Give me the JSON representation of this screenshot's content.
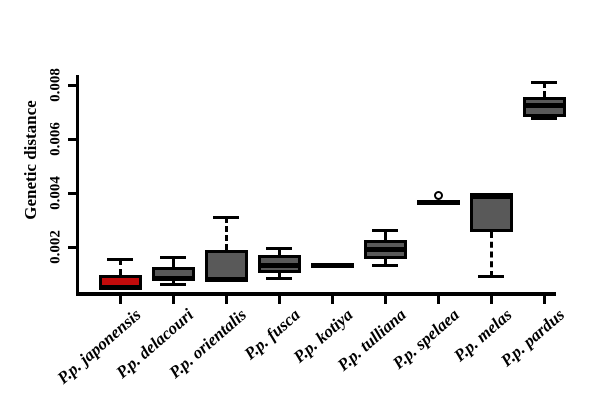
{
  "figure": {
    "title": "",
    "ylabel": "Genetic distance",
    "xlabel": ""
  },
  "chart_data": {
    "type": "boxplot",
    "title": "",
    "ylabel": "Genetic distance",
    "xlabel": "",
    "ylim": [
      0.0003,
      0.0084
    ],
    "yticks": [
      0.002,
      0.004,
      0.006,
      0.008
    ],
    "ytick_labels": [
      "0.002",
      "0.004",
      "0.006",
      "0.008"
    ],
    "grid": false,
    "legend": null,
    "colors": {
      "highlight_box_fill": "#c20b0b",
      "box_fill": "#595959",
      "line": "#000000",
      "background": "#ffffff"
    },
    "categories": [
      "P.p. japonensis",
      "P.p. delacouri",
      "P.p. orientalis",
      "P.p. fusca",
      "P.p. kotiya",
      "P.p. tulliana",
      "P.p. spelaea",
      "P.p. melas",
      "P.p. pardus"
    ],
    "series": [
      {
        "category": "P.p. japonensis",
        "fill": "#c20b0b",
        "q1": 0.00045,
        "median": 0.0005,
        "q3": 0.00095,
        "whisker_low": null,
        "whisker_high": 0.00155,
        "outliers": []
      },
      {
        "category": "P.p. delacouri",
        "fill": "#595959",
        "q1": 0.0008,
        "median": 0.00085,
        "q3": 0.00125,
        "whisker_low": 0.0006,
        "whisker_high": 0.0016,
        "outliers": []
      },
      {
        "category": "P.p. orientalis",
        "fill": "#595959",
        "q1": 0.0007,
        "median": 0.00078,
        "q3": 0.0019,
        "whisker_low": null,
        "whisker_high": 0.0031,
        "outliers": []
      },
      {
        "category": "P.p. fusca",
        "fill": "#595959",
        "q1": 0.00105,
        "median": 0.0013,
        "q3": 0.0017,
        "whisker_low": 0.00085,
        "whisker_high": 0.00195,
        "outliers": []
      },
      {
        "category": "P.p. kotiya",
        "fill": "#595959",
        "q1": 0.00132,
        "median": 0.00132,
        "q3": 0.00132,
        "whisker_low": null,
        "whisker_high": null,
        "outliers": []
      },
      {
        "category": "P.p. tulliana",
        "fill": "#595959",
        "q1": 0.00155,
        "median": 0.0019,
        "q3": 0.00225,
        "whisker_low": 0.0013,
        "whisker_high": 0.0026,
        "outliers": []
      },
      {
        "category": "P.p. spelaea",
        "fill": "#595959",
        "q1": 0.00363,
        "median": 0.00363,
        "q3": 0.00363,
        "whisker_low": null,
        "whisker_high": null,
        "outliers": [
          0.0039
        ]
      },
      {
        "category": "P.p. melas",
        "fill": "#595959",
        "q1": 0.00255,
        "median": 0.0039,
        "q3": 0.0039,
        "whisker_low": 0.0009,
        "whisker_high": null,
        "outliers": []
      },
      {
        "category": "P.p. pardus",
        "fill": "#595959",
        "q1": 0.0068,
        "median": 0.00725,
        "q3": 0.00755,
        "whisker_low": 0.00675,
        "whisker_high": 0.0081,
        "outliers": []
      }
    ]
  }
}
